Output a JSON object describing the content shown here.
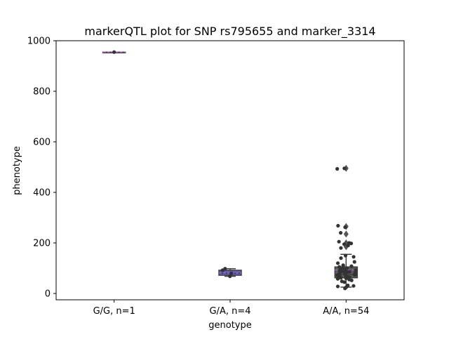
{
  "chart_data": {
    "type": "box",
    "title": "markerQTL plot for SNP rs795655 and marker_3314",
    "xlabel": "genotype",
    "ylabel": "phenotype",
    "ylim": [
      -25,
      1000
    ],
    "yticks": [
      0,
      200,
      400,
      600,
      800,
      1000
    ],
    "categories": [
      "G/G, n=1",
      "G/A, n=4",
      "A/A, n=54"
    ],
    "boxes": [
      {
        "category": "G/G, n=1",
        "q1": 955,
        "median": 955,
        "q3": 955,
        "whisker_low": 955,
        "whisker_high": 955,
        "mean": 955,
        "color": "#5a5a5a",
        "outliers": []
      },
      {
        "category": "G/A, n=4",
        "q1": 72,
        "median": 80,
        "q3": 92,
        "whisker_low": 68,
        "whisker_high": 98,
        "mean": 81,
        "color": "#5b63b8",
        "outliers": []
      },
      {
        "category": "A/A, n=54",
        "q1": 62,
        "median": 75,
        "q3": 105,
        "whisker_low": 25,
        "whisker_high": 155,
        "mean": 93,
        "color": "#5a5a5a",
        "outliers": [
          185,
          200,
          235,
          265,
          495
        ]
      }
    ],
    "points": [
      {
        "category": "G/G, n=1",
        "values": [
          955
        ]
      },
      {
        "category": "G/A, n=4",
        "values": [
          68,
          80,
          92,
          98
        ]
      },
      {
        "category": "A/A, n=54",
        "values": [
          20,
          25,
          28,
          30,
          32,
          45,
          48,
          52,
          55,
          58,
          60,
          62,
          64,
          65,
          66,
          68,
          70,
          72,
          74,
          75,
          76,
          78,
          80,
          82,
          84,
          85,
          86,
          88,
          90,
          92,
          95,
          98,
          100,
          102,
          105,
          108,
          110,
          112,
          120,
          125,
          140,
          145,
          150,
          180,
          190,
          195,
          198,
          200,
          205,
          240,
          262,
          268,
          493,
          495
        ]
      }
    ],
    "grid": false,
    "colors": {
      "points": "#333333",
      "mean_line": "#b44fe0",
      "outlier": "#555555"
    }
  }
}
